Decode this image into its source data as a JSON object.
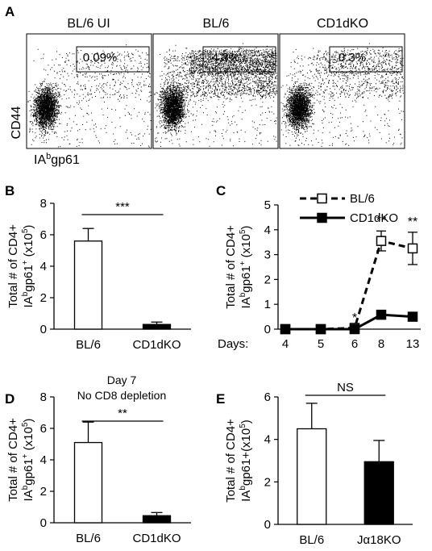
{
  "panels": {
    "A": {
      "letter": "A",
      "y_axis_label": "CD44",
      "x_axis_label_parts": [
        "IA",
        "b",
        "gp61"
      ],
      "plots": [
        {
          "title": "BL/6 UI",
          "gate_percent": "0.09%",
          "gate_events_level": 0.05
        },
        {
          "title": "BL/6",
          "gate_percent": "4.3%",
          "gate_events_level": 1.0
        },
        {
          "title": "CD1dKO",
          "gate_percent": "0.3%",
          "gate_events_level": 0.3
        }
      ]
    },
    "B": {
      "letter": "B",
      "significance": "***"
    },
    "C": {
      "letter": "C",
      "days_label": "Days:",
      "significance": [
        "*",
        "**",
        "**"
      ]
    },
    "D": {
      "letter": "D",
      "title_lines": [
        "Day 7",
        "No CD8 depletion"
      ],
      "significance": "**"
    },
    "E": {
      "letter": "E",
      "significance": "NS"
    }
  },
  "y_label_lines": {
    "line1": "Total # of CD4+",
    "line2_parts": [
      "IA",
      "b",
      "gp61",
      "+",
      " (x10",
      "5",
      ")"
    ],
    "line2_parts_E": [
      "IA",
      "b",
      "gp61+(x10",
      "5",
      ")"
    ]
  },
  "chart_data": [
    {
      "panel": "B",
      "type": "bar",
      "categories": [
        "BL/6",
        "CD1dKO"
      ],
      "values": [
        5.6,
        0.3
      ],
      "errors": [
        0.8,
        0.15
      ],
      "fill": [
        "#ffffff",
        "#000000"
      ],
      "ylim": [
        0,
        8
      ],
      "yticks": [
        0,
        2,
        4,
        6,
        8
      ]
    },
    {
      "panel": "C",
      "type": "line",
      "x": [
        "4",
        "5",
        "6",
        "8",
        "13"
      ],
      "series": [
        {
          "name": "BL/6",
          "values": [
            0,
            0,
            0.05,
            3.55,
            3.25
          ],
          "errors": [
            0.05,
            0.05,
            0.08,
            0.4,
            0.65
          ],
          "marker": "open-square",
          "line": "dashed"
        },
        {
          "name": "CD1dKO",
          "values": [
            0,
            0,
            0,
            0.58,
            0.5
          ],
          "errors": [
            0.03,
            0.03,
            0.03,
            0.1,
            0.15
          ],
          "marker": "filled-square",
          "line": "solid"
        }
      ],
      "ylim": [
        0,
        5
      ],
      "yticks": [
        0,
        1,
        2,
        3,
        4,
        5
      ],
      "legend": "top-right"
    },
    {
      "panel": "D",
      "type": "bar",
      "categories": [
        "BL/6",
        "CD1dKO"
      ],
      "values": [
        5.1,
        0.45
      ],
      "errors": [
        1.3,
        0.2
      ],
      "fill": [
        "#ffffff",
        "#000000"
      ],
      "ylim": [
        0,
        8
      ],
      "yticks": [
        0,
        2,
        4,
        6,
        8
      ]
    },
    {
      "panel": "E",
      "type": "bar",
      "categories": [
        "BL/6",
        "Jα18KO"
      ],
      "values": [
        4.5,
        2.95
      ],
      "errors": [
        1.2,
        1.0
      ],
      "fill": [
        "#ffffff",
        "#000000"
      ],
      "ylim": [
        0,
        6
      ],
      "yticks": [
        0,
        2,
        4,
        6
      ]
    }
  ]
}
